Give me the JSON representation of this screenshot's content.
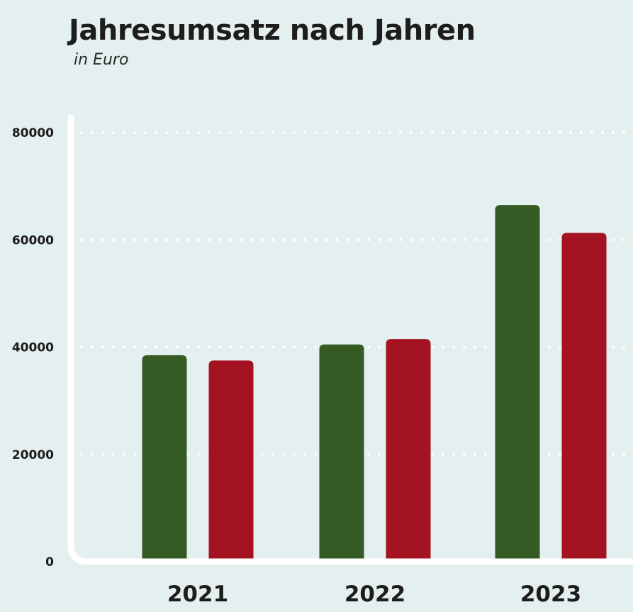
{
  "chart_data": {
    "type": "bar",
    "title": "Jahresumsatz nach Jahren",
    "subtitle": "in Euro",
    "xlabel": "",
    "ylabel": "",
    "categories": [
      "2021",
      "2022",
      "2023"
    ],
    "y_ticks": [
      "0",
      "20000",
      "40000",
      "60000",
      "80000"
    ],
    "ylim": [
      0,
      80000
    ],
    "grid": true,
    "grid_style": "dotted",
    "legend": "none",
    "series": [
      {
        "color": "#355a24",
        "values": [
          38500,
          40500,
          66500
        ]
      },
      {
        "color": "#a31321",
        "values": [
          37500,
          41500,
          61300
        ]
      }
    ]
  }
}
